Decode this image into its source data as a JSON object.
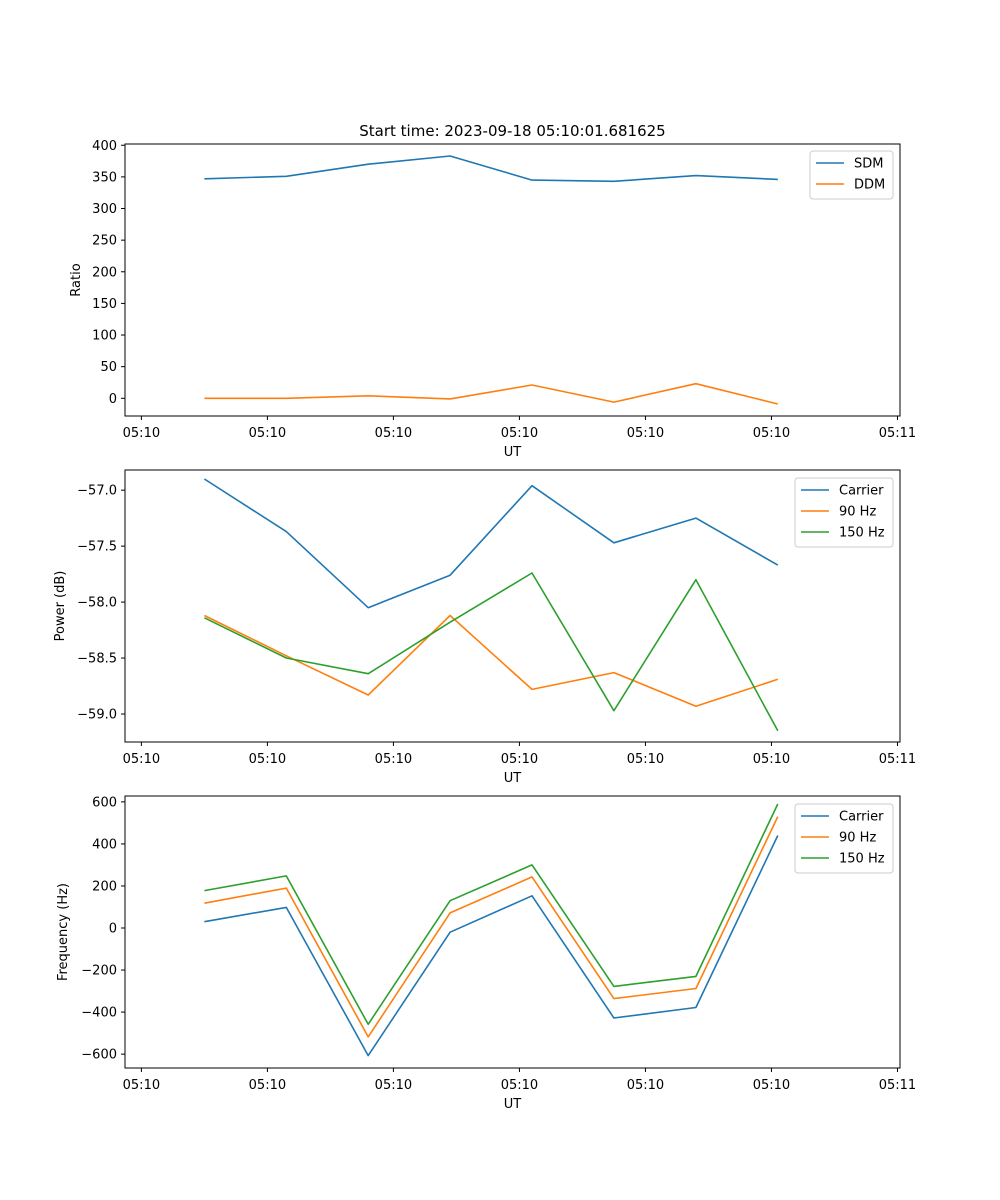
{
  "chart_data": [
    {
      "type": "line",
      "title": "Start time: 2023-09-18 05:10:01.681625",
      "xlabel": "UT",
      "ylabel": "Ratio",
      "ylim": [
        -28,
        402
      ],
      "yticks": [
        0,
        50,
        100,
        150,
        200,
        250,
        300,
        350,
        400
      ],
      "ytick_labels": [
        "0",
        "50",
        "100",
        "150",
        "200",
        "250",
        "300",
        "350",
        "400"
      ],
      "xticks": [
        0,
        1,
        2,
        3,
        4,
        5,
        6
      ],
      "xtick_labels": [
        "05:10",
        "05:10",
        "05:10",
        "05:10",
        "05:10",
        "05:10",
        "05:11"
      ],
      "xlim": [
        -0.13,
        6.02
      ],
      "x": [
        0.5,
        1.15,
        1.8,
        2.45,
        3.1,
        3.75,
        4.4,
        5.05
      ],
      "series": [
        {
          "name": "SDM",
          "color": "#1f77b4",
          "values": [
            347,
            351,
            370,
            383,
            345,
            343,
            352,
            346
          ]
        },
        {
          "name": "DDM",
          "color": "#ff7f0e",
          "values": [
            0,
            0,
            4,
            -1,
            21,
            -6,
            23,
            -9
          ]
        }
      ],
      "legend": "top-right"
    },
    {
      "type": "line",
      "title": "",
      "xlabel": "UT",
      "ylabel": "Power (dB)",
      "ylim": [
        -59.25,
        -56.82
      ],
      "yticks": [
        -59.0,
        -58.5,
        -58.0,
        -57.5,
        -57.0
      ],
      "ytick_labels": [
        "−59.0",
        "−58.5",
        "−58.0",
        "−57.5",
        "−57.0"
      ],
      "xticks": [
        0,
        1,
        2,
        3,
        4,
        5,
        6
      ],
      "xtick_labels": [
        "05:10",
        "05:10",
        "05:10",
        "05:10",
        "05:10",
        "05:10",
        "05:11"
      ],
      "xlim": [
        -0.13,
        6.02
      ],
      "x": [
        0.5,
        1.15,
        1.8,
        2.45,
        3.1,
        3.75,
        4.4,
        5.05
      ],
      "series": [
        {
          "name": "Carrier",
          "color": "#1f77b4",
          "values": [
            -56.9,
            -57.37,
            -58.05,
            -57.76,
            -56.96,
            -57.47,
            -57.25,
            -57.67
          ]
        },
        {
          "name": "90 Hz",
          "color": "#ff7f0e",
          "values": [
            -58.12,
            -58.48,
            -58.83,
            -58.12,
            -58.78,
            -58.63,
            -58.93,
            -58.69
          ]
        },
        {
          "name": "150 Hz",
          "color": "#2ca02c",
          "values": [
            -58.14,
            -58.5,
            -58.64,
            -58.18,
            -57.74,
            -58.97,
            -57.8,
            -59.15
          ]
        }
      ],
      "legend": "top-right"
    },
    {
      "type": "line",
      "title": "",
      "xlabel": "UT",
      "ylabel": "Frequency (Hz)",
      "ylim": [
        -666,
        628
      ],
      "yticks": [
        -600,
        -400,
        -200,
        0,
        200,
        400,
        600
      ],
      "ytick_labels": [
        "−600",
        "−400",
        "−200",
        "0",
        "200",
        "400",
        "600"
      ],
      "xticks": [
        0,
        1,
        2,
        3,
        4,
        5,
        6
      ],
      "xtick_labels": [
        "05:10",
        "05:10",
        "05:10",
        "05:10",
        "05:10",
        "05:10",
        "05:11"
      ],
      "xlim": [
        -0.13,
        6.02
      ],
      "x": [
        0.5,
        1.15,
        1.8,
        2.45,
        3.1,
        3.75,
        4.4,
        5.05
      ],
      "series": [
        {
          "name": "Carrier",
          "color": "#1f77b4",
          "values": [
            30,
            98,
            -607,
            -20,
            153,
            -428,
            -378,
            440
          ]
        },
        {
          "name": "90 Hz",
          "color": "#ff7f0e",
          "values": [
            118,
            190,
            -518,
            72,
            243,
            -336,
            -288,
            530
          ]
        },
        {
          "name": "150 Hz",
          "color": "#2ca02c",
          "values": [
            178,
            248,
            -458,
            130,
            300,
            -278,
            -230,
            590
          ]
        }
      ],
      "legend": "top-right"
    }
  ]
}
